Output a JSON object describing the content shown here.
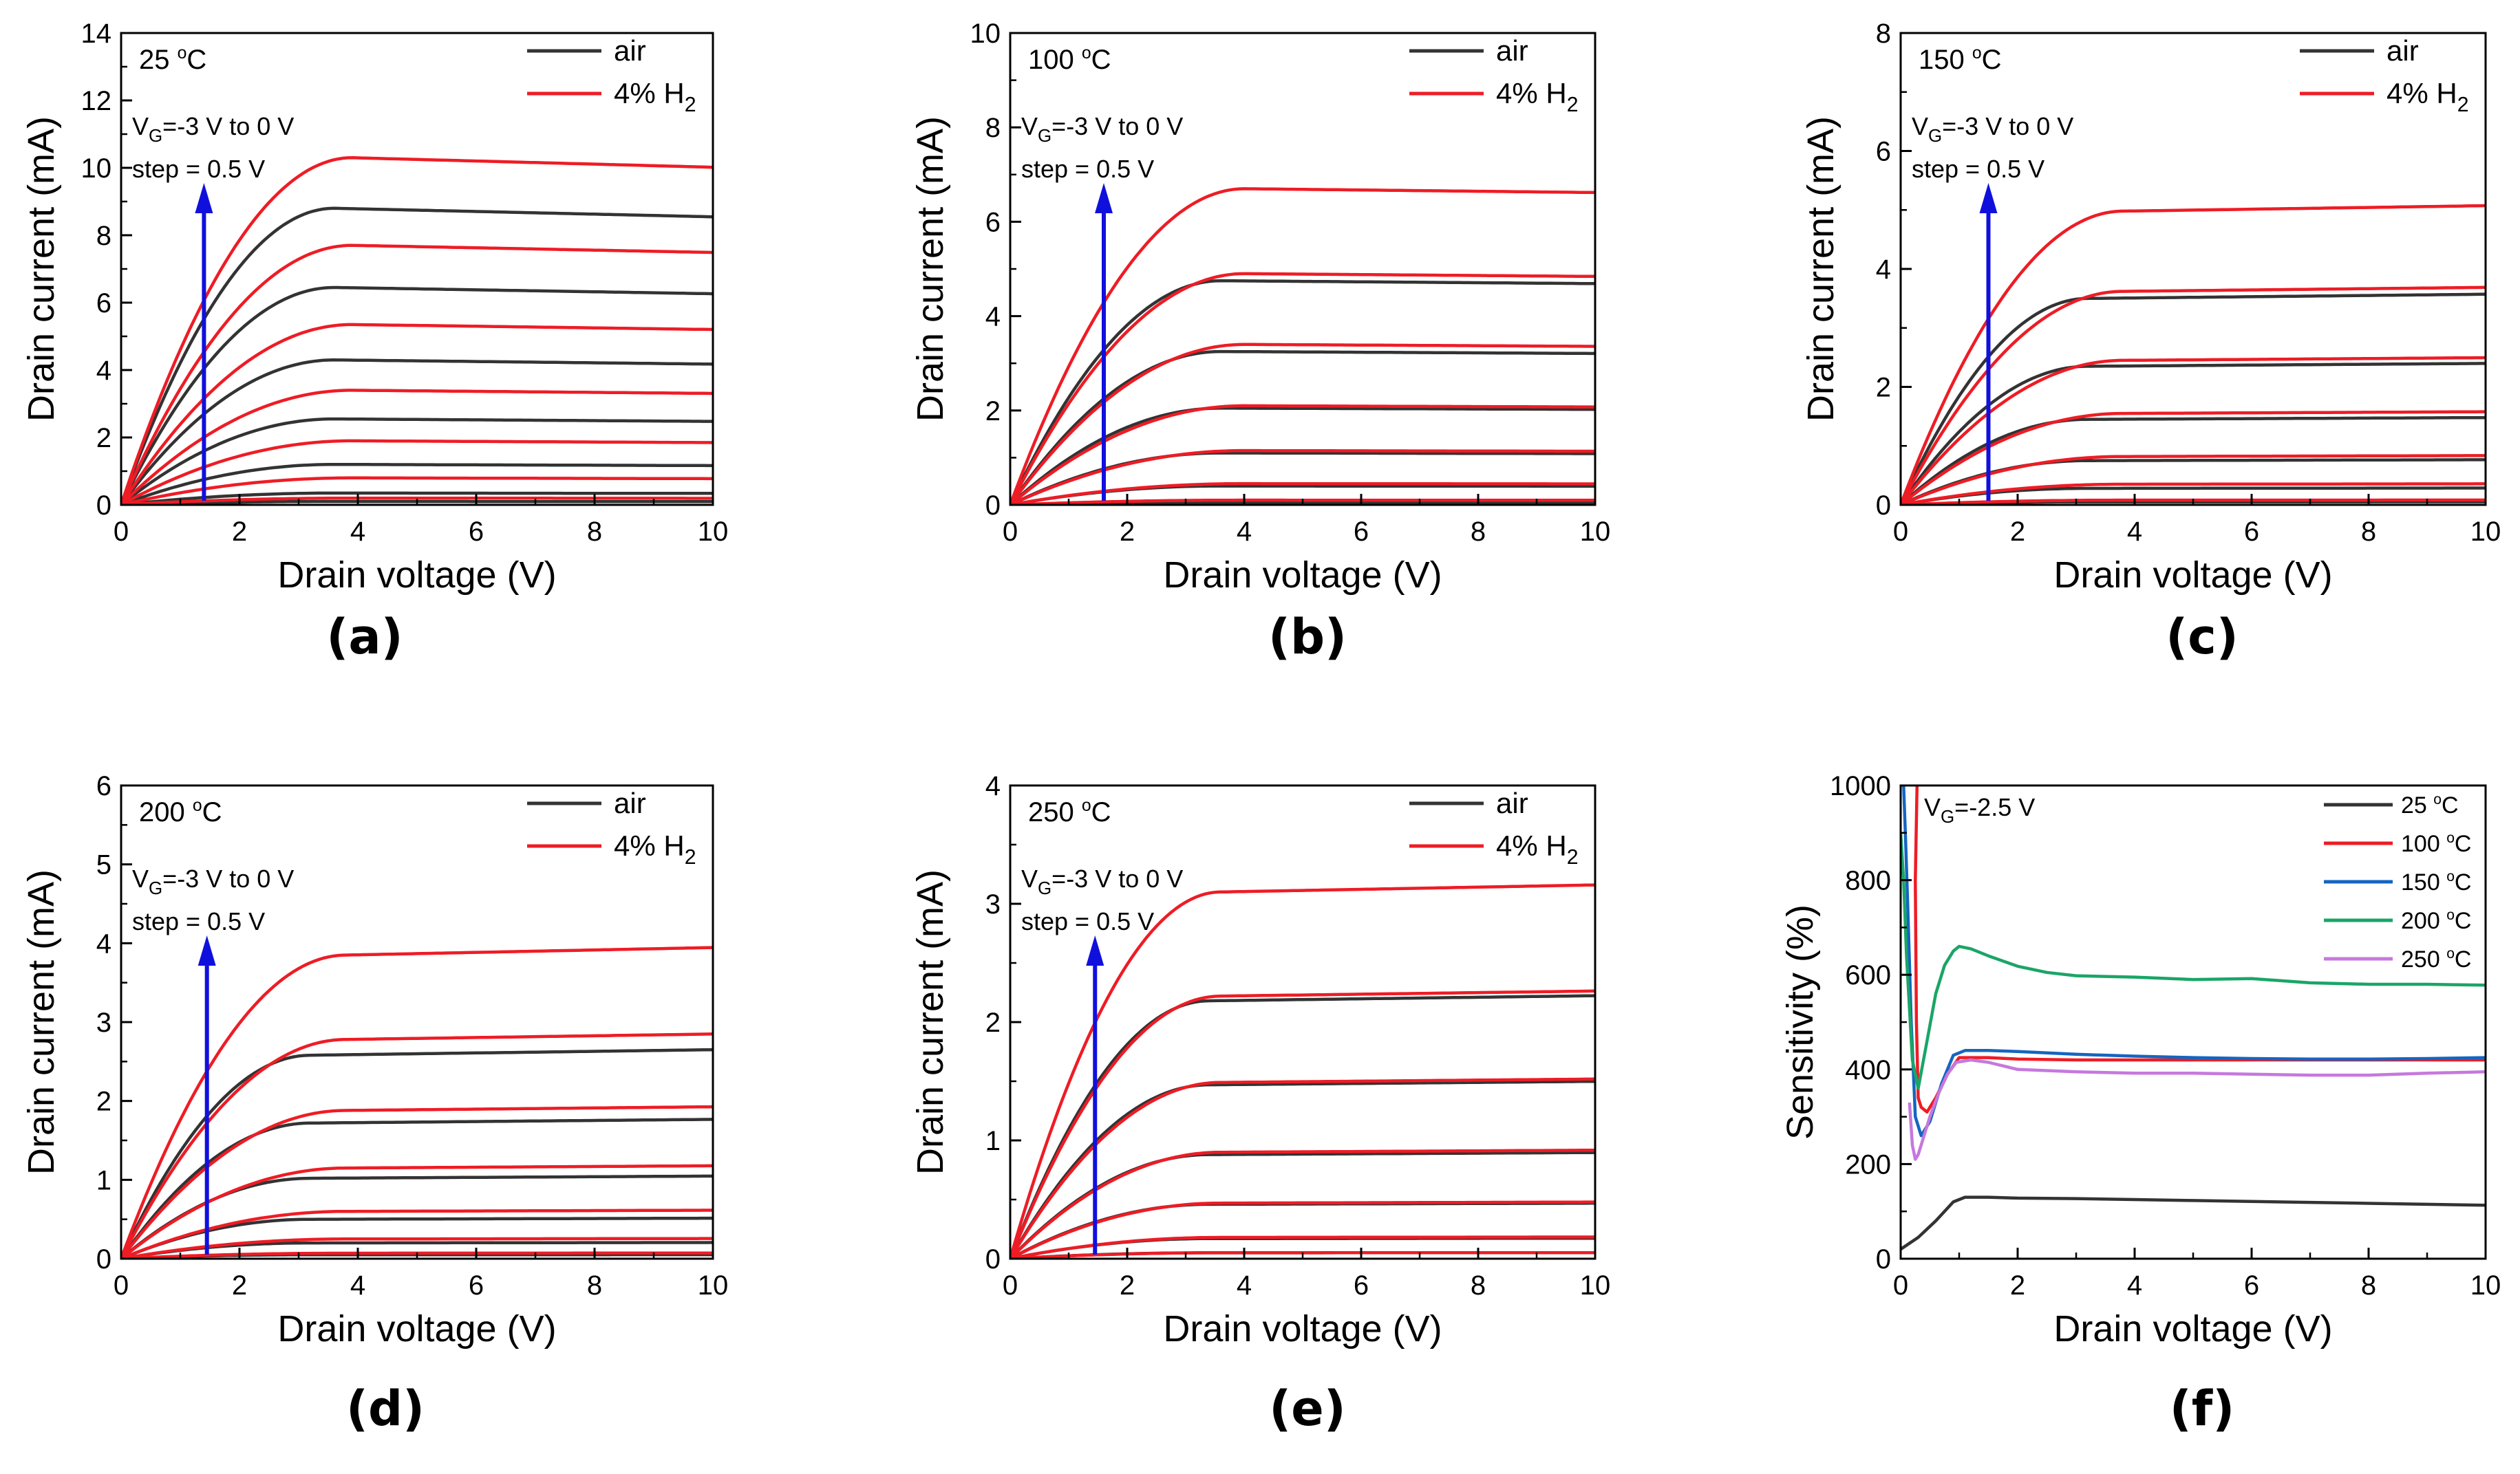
{
  "colors": {
    "air": "#333333",
    "h2": "#ee1c25",
    "arrow": "#1010dd",
    "axis": "#000000"
  },
  "chart_data": [
    {
      "type": "line",
      "panel_label": "(a)",
      "temperature": "25 °C",
      "xlabel": "Drain voltage (V)",
      "ylabel": "Drain current (mA)",
      "xlim": [
        0,
        10
      ],
      "ylim": [
        0,
        14
      ],
      "xticks": [
        0,
        2,
        4,
        6,
        8,
        10
      ],
      "yticks": [
        0,
        2,
        4,
        6,
        8,
        10,
        12,
        14
      ],
      "legend": [
        "air",
        "4% H₂"
      ],
      "annotation": {
        "vg": "VG=-3 V to 0 V",
        "step": "step = 0.5 V",
        "arrow_x": 1.4
      },
      "model": {
        "vsat_air": 3.6,
        "vsat_h2": 3.9,
        "slope_air": -0.0045,
        "slope_h2": -0.0045
      },
      "series": [
        {
          "name": "air",
          "isat": [
            0.1,
            0.35,
            1.2,
            2.55,
            4.3,
            6.45,
            8.8
          ]
        },
        {
          "name": "4% H₂",
          "isat": [
            0.2,
            0.8,
            1.9,
            3.4,
            5.35,
            7.7,
            10.3
          ]
        }
      ]
    },
    {
      "type": "line",
      "panel_label": "(b)",
      "temperature": "100 °C",
      "xlabel": "Drain voltage (V)",
      "ylabel": "Drain current (mA)",
      "xlim": [
        0,
        10
      ],
      "ylim": [
        0,
        10
      ],
      "xticks": [
        0,
        2,
        4,
        6,
        8,
        10
      ],
      "yticks": [
        0,
        2,
        4,
        6,
        8,
        10
      ],
      "legend": [
        "air",
        "4% H₂"
      ],
      "annotation": {
        "vg": "VG=-3 V to 0 V",
        "step": "step = 0.5 V",
        "arrow_x": 1.6
      },
      "model": {
        "vsat_air": 3.6,
        "vsat_h2": 4.0,
        "slope_air": -0.002,
        "slope_h2": -0.002
      },
      "series": [
        {
          "name": "air",
          "isat": [
            0.05,
            0.4,
            1.1,
            2.05,
            3.25,
            4.75
          ]
        },
        {
          "name": "4% H₂",
          "isat": [
            0.1,
            0.45,
            1.15,
            2.1,
            3.4,
            4.9,
            6.7
          ]
        }
      ]
    },
    {
      "type": "line",
      "panel_label": "(c)",
      "temperature": "150 °C",
      "xlabel": "Drain voltage (V)",
      "ylabel": "Drain current (mA)",
      "xlim": [
        0,
        10
      ],
      "ylim": [
        0,
        8
      ],
      "xticks": [
        0,
        2,
        4,
        6,
        8,
        10
      ],
      "yticks": [
        0,
        2,
        4,
        6,
        8
      ],
      "legend": [
        "air",
        "4% H₂"
      ],
      "annotation": {
        "vg": "VG=-3 V to 0 V",
        "step": "step = 0.5 V",
        "arrow_x": 1.5
      },
      "model": {
        "vsat_air": 3.2,
        "vsat_h2": 3.8,
        "slope_air": 0.003,
        "slope_h2": 0.003
      },
      "series": [
        {
          "name": "air",
          "isat": [
            0.05,
            0.28,
            0.75,
            1.45,
            2.35,
            3.5
          ]
        },
        {
          "name": "4% H₂",
          "isat": [
            0.08,
            0.35,
            0.82,
            1.55,
            2.45,
            3.62,
            4.98
          ]
        }
      ]
    },
    {
      "type": "line",
      "panel_label": "(d)",
      "temperature": "200 °C",
      "xlabel": "Drain voltage (V)",
      "ylabel": "Drain current (mA)",
      "xlim": [
        0,
        10
      ],
      "ylim": [
        0,
        6
      ],
      "xticks": [
        0,
        2,
        4,
        6,
        8,
        10
      ],
      "yticks": [
        0,
        1,
        2,
        3,
        4,
        5,
        6
      ],
      "legend": [
        "air",
        "4% H₂"
      ],
      "annotation": {
        "vg": "VG=-3 V to 0 V",
        "step": "step = 0.5 V",
        "arrow_x": 1.45
      },
      "model": {
        "vsat_air": 3.2,
        "vsat_h2": 3.8,
        "slope_air": 0.004,
        "slope_h2": 0.004
      },
      "series": [
        {
          "name": "air",
          "isat": [
            0.05,
            0.2,
            0.5,
            1.02,
            1.72,
            2.58
          ]
        },
        {
          "name": "4% H₂",
          "isat": [
            0.07,
            0.25,
            0.6,
            1.15,
            1.88,
            2.78,
            3.85
          ]
        }
      ]
    },
    {
      "type": "line",
      "panel_label": "(e)",
      "temperature": "250 °C",
      "xlabel": "Drain voltage (V)",
      "ylabel": "Drain current (mA)",
      "xlim": [
        0,
        10
      ],
      "ylim": [
        0,
        4
      ],
      "xticks": [
        0,
        2,
        4,
        6,
        8,
        10
      ],
      "yticks": [
        0,
        1,
        2,
        3,
        4
      ],
      "legend": [
        "air",
        "4% H₂"
      ],
      "annotation": {
        "vg": "VG=-3 V to 0 V",
        "step": "step = 0.5 V",
        "arrow_x": 1.45
      },
      "model": {
        "vsat_air": 3.4,
        "vsat_h2": 3.6,
        "slope_air": 0.003,
        "slope_h2": 0.003
      },
      "series": [
        {
          "name": "air",
          "isat": [
            0.05,
            0.17,
            0.46,
            0.88,
            1.47,
            2.18
          ]
        },
        {
          "name": "4% H₂",
          "isat": [
            0.05,
            0.18,
            0.47,
            0.9,
            1.49,
            2.22,
            3.1
          ]
        }
      ]
    },
    {
      "type": "line",
      "panel_label": "(f)",
      "annotation_text": "VG=-2.5 V",
      "xlabel": "Drain voltage (V)",
      "ylabel": "Sensitivity (%)",
      "xlim": [
        0,
        10
      ],
      "ylim": [
        0,
        1000
      ],
      "xticks": [
        0,
        2,
        4,
        6,
        8,
        10
      ],
      "yticks": [
        0,
        200,
        400,
        600,
        800,
        1000
      ],
      "series": [
        {
          "name": "25 °C",
          "color": "#333333",
          "x": [
            0,
            0.3,
            0.6,
            0.9,
            1.1,
            1.5,
            2,
            3,
            4,
            5,
            6,
            7,
            8,
            9,
            10
          ],
          "y": [
            20,
            45,
            80,
            120,
            130,
            130,
            128,
            127,
            125,
            123,
            121,
            119,
            117,
            115,
            113
          ]
        },
        {
          "name": "100 °C",
          "color": "#ee1c25",
          "x": [
            0.28,
            0.25,
            0.27,
            0.3,
            0.35,
            0.45,
            0.6,
            0.8,
            1.0,
            1.5,
            2,
            3,
            4,
            5,
            6,
            7,
            8,
            9,
            10
          ],
          "y": [
            1000,
            800,
            500,
            340,
            320,
            310,
            340,
            390,
            425,
            425,
            422,
            420,
            420,
            420,
            420,
            420,
            420,
            420,
            420
          ]
        },
        {
          "name": "150 °C",
          "color": "#1565c0",
          "x": [
            0.05,
            0.08,
            0.12,
            0.18,
            0.25,
            0.35,
            0.5,
            0.7,
            0.9,
            1.1,
            1.5,
            2,
            3,
            4,
            5,
            6,
            7,
            8,
            9,
            10
          ],
          "y": [
            1000,
            900,
            750,
            500,
            300,
            260,
            290,
            370,
            430,
            440,
            440,
            438,
            432,
            428,
            425,
            423,
            422,
            422,
            423,
            425
          ]
        },
        {
          "name": "200 °C",
          "color": "#1aa567",
          "x": [
            0.0,
            0.05,
            0.1,
            0.2,
            0.3,
            0.45,
            0.6,
            0.75,
            0.9,
            1.0,
            1.2,
            1.5,
            2,
            2.5,
            3,
            4,
            5,
            6,
            7,
            8,
            9,
            10
          ],
          "y": [
            900,
            800,
            640,
            420,
            360,
            460,
            560,
            620,
            650,
            660,
            655,
            640,
            618,
            605,
            598,
            595,
            590,
            592,
            583,
            580,
            580,
            578
          ]
        },
        {
          "name": "250 °C",
          "color": "#c678dd",
          "x": [
            0.15,
            0.2,
            0.25,
            0.3,
            0.4,
            0.5,
            0.65,
            0.8,
            0.95,
            1.2,
            1.5,
            2,
            3,
            4,
            5,
            6,
            7,
            8,
            9,
            10
          ],
          "y": [
            330,
            240,
            210,
            220,
            260,
            300,
            350,
            390,
            415,
            420,
            415,
            400,
            395,
            392,
            392,
            390,
            388,
            388,
            392,
            395
          ]
        }
      ]
    }
  ]
}
